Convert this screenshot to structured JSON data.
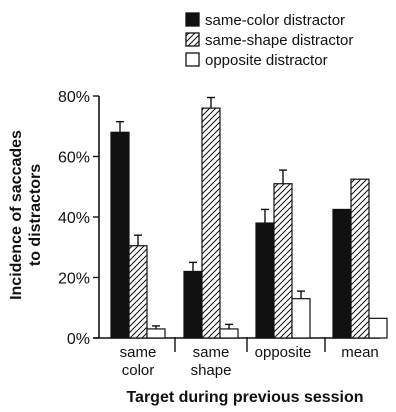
{
  "chart_data": {
    "type": "bar",
    "title": "",
    "xlabel": "Target during previous session",
    "ylabel": "Incidence of saccades to distractors",
    "ylim": [
      0,
      80
    ],
    "y_ticks": [
      0,
      20,
      40,
      60,
      80
    ],
    "y_tick_labels": [
      "0%",
      "20%",
      "40%",
      "60%",
      "80%"
    ],
    "categories": [
      [
        "same",
        "color"
      ],
      [
        "same",
        "shape"
      ],
      [
        "opposite"
      ],
      [
        "mean"
      ]
    ],
    "legend_position": "top-right",
    "series": [
      {
        "name": "same-color distractor",
        "pattern": "solid",
        "color": "#111111",
        "values": [
          68,
          22,
          38,
          42.5
        ],
        "errors": [
          3.5,
          3,
          4.5,
          null
        ]
      },
      {
        "name": "same-shape distractor",
        "pattern": "hatched",
        "color": "#111111",
        "values": [
          30.5,
          76,
          51,
          52.5
        ],
        "errors": [
          3.5,
          3.5,
          4.5,
          null
        ]
      },
      {
        "name": "opposite distractor",
        "pattern": "open",
        "color": "#111111",
        "values": [
          3,
          3,
          13,
          6.5
        ],
        "errors": [
          1,
          1.5,
          2.5,
          null
        ]
      }
    ],
    "grid": false
  }
}
